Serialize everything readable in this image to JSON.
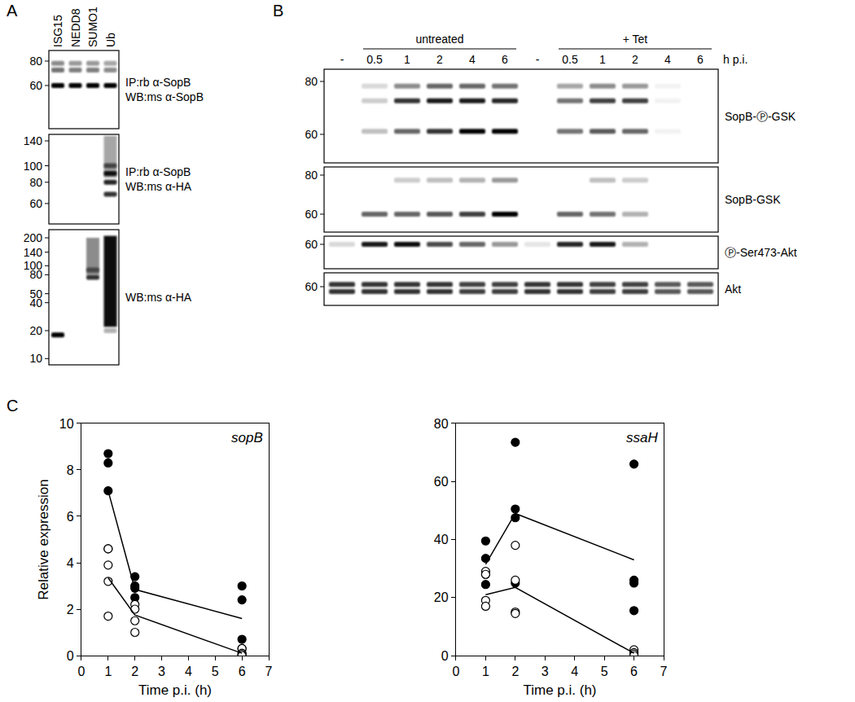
{
  "panels": {
    "A": {
      "label": "A",
      "lanes": [
        "ISG15",
        "NEDD8",
        "SUMO1",
        "Ub"
      ],
      "blots": [
        {
          "markers": [
            80,
            60
          ],
          "labels": [
            "IP:rb α-SopB",
            "WB:ms α-SopB"
          ],
          "bands": [
            {
              "kda": 78,
              "intensities": [
                0.45,
                0.4,
                0.4,
                0.35
              ]
            },
            {
              "kda": 72,
              "intensities": [
                0.55,
                0.5,
                0.5,
                0.45
              ]
            },
            {
              "kda": 60,
              "intensities": [
                1,
                1,
                1,
                1
              ]
            }
          ]
        },
        {
          "markers": [
            140,
            100,
            80,
            60
          ],
          "labels": [
            "IP:rb α-SopB",
            "WB:ms α-HA"
          ],
          "bands": [
            {
              "kda_range": [
                85,
                150
              ],
              "intensities": [
                0,
                0,
                0,
                0.35
              ]
            },
            {
              "kda": 100,
              "intensities": [
                0,
                0,
                0,
                0.6
              ]
            },
            {
              "kda": 90,
              "intensities": [
                0,
                0,
                0,
                0.9
              ]
            },
            {
              "kda": 80,
              "intensities": [
                0,
                0,
                0,
                0.85
              ]
            },
            {
              "kda": 68,
              "intensities": [
                0,
                0,
                0,
                0.8
              ]
            }
          ]
        },
        {
          "markers": [
            200,
            140,
            100,
            80,
            50,
            40,
            20,
            10
          ],
          "labels": [
            "WB:ms α-HA"
          ],
          "bands": [
            {
              "kda_range": [
                80,
                200
              ],
              "intensities": [
                0,
                0,
                0.45,
                0
              ]
            },
            {
              "kda": 90,
              "intensities": [
                0,
                0,
                0.5,
                0
              ]
            },
            {
              "kda": 75,
              "intensities": [
                0,
                0,
                0.8,
                0
              ]
            },
            {
              "kda_range": [
                22,
                210
              ],
              "intensities": [
                0,
                0,
                0,
                0.95
              ]
            },
            {
              "kda": 20,
              "intensities": [
                0,
                0,
                0,
                0.3
              ]
            },
            {
              "kda": 18,
              "intensities": [
                1,
                0,
                0,
                0
              ]
            }
          ]
        }
      ]
    },
    "B": {
      "label": "B",
      "lane_groups": [
        {
          "title": "untreated",
          "lanes": [
            "-",
            "0.5",
            "1",
            "2",
            "4",
            "6"
          ]
        },
        {
          "title": "+ Tet",
          "lanes": [
            "-",
            "0.5",
            "1",
            "2",
            "4",
            "6"
          ]
        }
      ],
      "lane_unit": "h p.i.",
      "blots": [
        {
          "markers": [
            80,
            60
          ],
          "labels": [
            "SopB-Ⓟ-GSK"
          ],
          "bands": [
            {
              "kda": 78,
              "intensities": [
                0,
                0.15,
                0.45,
                0.6,
                0.6,
                0.55,
                0,
                0.35,
                0.45,
                0.4,
                0.05,
                0
              ]
            },
            {
              "kda": 72,
              "intensities": [
                0,
                0.2,
                0.8,
                0.9,
                0.9,
                0.85,
                0,
                0.55,
                0.75,
                0.75,
                0.05,
                0
              ]
            },
            {
              "kda": 61,
              "intensities": [
                0,
                0.25,
                0.6,
                0.8,
                1,
                1,
                0,
                0.55,
                0.65,
                0.6,
                0.05,
                0
              ]
            }
          ]
        },
        {
          "markers": [
            80,
            60
          ],
          "labels": [
            "SopB-GSK"
          ],
          "bands": [
            {
              "kda": 77,
              "intensities": [
                0,
                0,
                0.2,
                0.25,
                0.3,
                0.4,
                0,
                0,
                0.25,
                0.2,
                0,
                0
              ]
            },
            {
              "kda": 60,
              "intensities": [
                0,
                0.6,
                0.6,
                0.65,
                0.75,
                1,
                0,
                0.6,
                0.55,
                0.3,
                0,
                0
              ]
            }
          ]
        },
        {
          "markers": [
            60
          ],
          "labels": [
            "Ⓟ-Ser473-Akt"
          ],
          "bands": [
            {
              "kda": 60,
              "intensities": [
                0.15,
                0.9,
                0.95,
                0.7,
                0.6,
                0.4,
                0.1,
                0.85,
                0.9,
                0.3,
                0,
                0
              ]
            }
          ]
        },
        {
          "markers": [
            60
          ],
          "labels": [
            "Akt"
          ],
          "bands": [
            {
              "kda": 61,
              "intensities": [
                0.8,
                0.8,
                0.8,
                0.8,
                0.75,
                0.75,
                0.8,
                0.8,
                0.75,
                0.75,
                0.65,
                0.65
              ]
            },
            {
              "kda": 58,
              "intensities": [
                0.8,
                0.8,
                0.8,
                0.8,
                0.75,
                0.75,
                0.8,
                0.8,
                0.75,
                0.75,
                0.65,
                0.65
              ]
            }
          ]
        }
      ]
    },
    "C": {
      "label": "C"
    }
  },
  "chart_data": [
    {
      "type": "scatter",
      "x_label": "Time p.i. (h)",
      "y_label": "Relative expression",
      "annotations": [
        {
          "text": "sopB"
        }
      ],
      "xlim": [
        0,
        7
      ],
      "xticks": [
        0,
        1,
        2,
        3,
        4,
        5,
        6,
        7
      ],
      "ylim": [
        0,
        10
      ],
      "yticks": [
        0,
        2,
        4,
        6,
        8,
        10
      ],
      "grid": false,
      "series": [
        {
          "type": "scatter",
          "marker": "filled",
          "color": "#000000",
          "x": [
            1,
            1,
            1,
            1,
            2,
            2,
            2,
            2,
            6,
            6,
            6,
            6
          ],
          "values": [
            8.7,
            8.3,
            7.1,
            4.6,
            3.4,
            3.0,
            2.9,
            2.5,
            3.0,
            2.4,
            0.7,
            0.3
          ]
        },
        {
          "type": "scatter",
          "marker": "open",
          "color": "#000000",
          "x": [
            1,
            1,
            1,
            1,
            2,
            2,
            2,
            2,
            6,
            6,
            6,
            6
          ],
          "values": [
            4.6,
            3.9,
            3.2,
            1.7,
            2.2,
            2.0,
            1.5,
            1.0,
            0.3,
            0.1,
            0.05,
            0.0
          ]
        },
        {
          "type": "line",
          "line_style": "solid",
          "color": "#000000",
          "x": [
            1,
            2,
            6
          ],
          "values": [
            7.1,
            2.85,
            1.6
          ]
        },
        {
          "type": "line",
          "line_style": "solid",
          "color": "#000000",
          "x": [
            1,
            2,
            6
          ],
          "values": [
            3.35,
            1.75,
            0.1
          ]
        }
      ]
    },
    {
      "type": "scatter",
      "x_label": "Time p.i. (h)",
      "annotations": [
        {
          "text": "ssaH"
        }
      ],
      "xlim": [
        0,
        7
      ],
      "xticks": [
        0,
        1,
        2,
        3,
        4,
        5,
        6,
        7
      ],
      "ylim": [
        0,
        80
      ],
      "yticks": [
        0,
        20,
        40,
        60,
        80
      ],
      "grid": false,
      "series": [
        {
          "type": "scatter",
          "marker": "filled",
          "color": "#000000",
          "x": [
            1,
            1,
            1,
            1,
            2,
            2,
            2,
            2,
            6,
            6,
            6,
            6
          ],
          "values": [
            39.5,
            33.5,
            28,
            24.5,
            73.5,
            50.5,
            47.5,
            25,
            66,
            26,
            25,
            15.5
          ]
        },
        {
          "type": "scatter",
          "marker": "open",
          "color": "#000000",
          "x": [
            1,
            1,
            1,
            1,
            2,
            2,
            2,
            2,
            6,
            6,
            6,
            6
          ],
          "values": [
            29,
            28,
            19,
            17,
            38,
            26,
            15,
            14.5,
            2,
            1,
            0.5,
            0
          ]
        },
        {
          "type": "line",
          "line_style": "solid",
          "color": "#000000",
          "x": [
            1,
            2,
            6
          ],
          "values": [
            31.5,
            49,
            33
          ]
        },
        {
          "type": "line",
          "line_style": "solid",
          "color": "#000000",
          "x": [
            1,
            2,
            6
          ],
          "values": [
            21,
            23.5,
            0.8
          ]
        }
      ]
    }
  ]
}
